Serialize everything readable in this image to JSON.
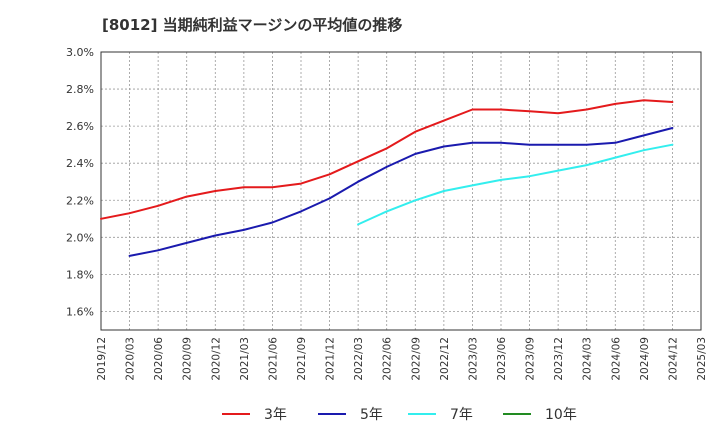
{
  "chart_data": {
    "type": "line",
    "title": "[8012]  当期純利益マージンの平均値の推移",
    "xlabel": "",
    "ylabel": "",
    "ylim": [
      1.5,
      3.0
    ],
    "y_ticks": [
      "1.6%",
      "1.8%",
      "2.0%",
      "2.2%",
      "2.4%",
      "2.6%",
      "2.8%",
      "3.0%"
    ],
    "y_tick_values": [
      1.6,
      1.8,
      2.0,
      2.2,
      2.4,
      2.6,
      2.8,
      3.0
    ],
    "x_ticks": [
      "2019/12",
      "2020/03",
      "2020/06",
      "2020/09",
      "2020/12",
      "2021/03",
      "2021/06",
      "2021/09",
      "2021/12",
      "2022/03",
      "2022/06",
      "2022/09",
      "2022/12",
      "2023/03",
      "2023/06",
      "2023/09",
      "2023/12",
      "2024/03",
      "2024/06",
      "2024/09",
      "2024/12",
      "2025/03"
    ],
    "grid": true,
    "legend_position": "bottom",
    "series": [
      {
        "name": "3年",
        "color": "#e41a1c",
        "values": [
          2.1,
          2.13,
          2.17,
          2.22,
          2.25,
          2.27,
          2.27,
          2.29,
          2.34,
          2.41,
          2.48,
          2.57,
          2.63,
          2.69,
          2.69,
          2.68,
          2.67,
          2.69,
          2.72,
          2.74,
          2.73
        ]
      },
      {
        "name": "5年",
        "color": "#1a1aae",
        "values": [
          null,
          1.9,
          1.93,
          1.97,
          2.01,
          2.04,
          2.08,
          2.14,
          2.21,
          2.3,
          2.38,
          2.45,
          2.49,
          2.51,
          2.51,
          2.5,
          2.5,
          2.5,
          2.51,
          2.55,
          2.59
        ]
      },
      {
        "name": "7年",
        "color": "#33eeee",
        "values": [
          null,
          null,
          null,
          null,
          null,
          null,
          null,
          null,
          null,
          2.07,
          2.14,
          2.2,
          2.25,
          2.28,
          2.31,
          2.33,
          2.36,
          2.39,
          2.43,
          2.47,
          2.5
        ]
      },
      {
        "name": "10年",
        "color": "#228b22",
        "values": [
          null,
          null,
          null,
          null,
          null,
          null,
          null,
          null,
          null,
          null,
          null,
          null,
          null,
          null,
          null,
          null,
          null,
          null,
          null,
          null,
          null
        ]
      }
    ]
  }
}
